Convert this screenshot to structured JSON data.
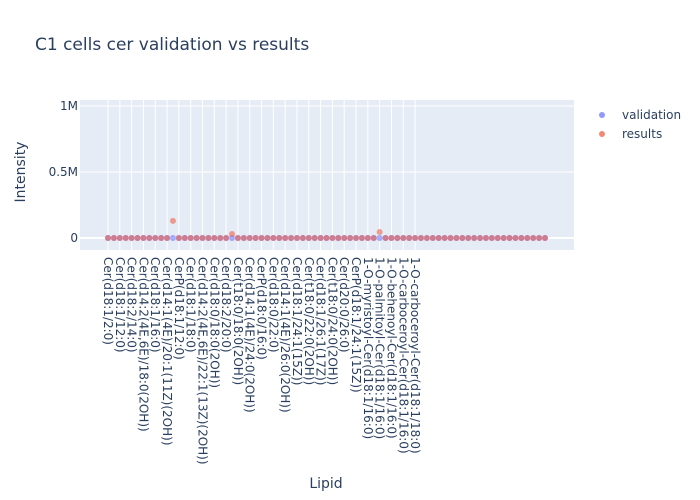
{
  "chart_data": {
    "type": "scatter",
    "title": "C1 cells cer validation vs results",
    "xlabel": "Lipid",
    "ylabel": "Intensity",
    "ylim": [
      -80000,
      1000000
    ],
    "yticks": [
      0,
      500000,
      1000000
    ],
    "ytick_labels": [
      "0",
      "0.5M",
      "1M"
    ],
    "legend_position": "top-right",
    "grid": true,
    "colors": {
      "validation": "#636efa",
      "results": "#ef553b",
      "overlap": "#a45a8c",
      "plot_bg": "#e5ecf6",
      "text": "#2a3f5f"
    },
    "categories": [
      "Cer(d18:1/2:0)",
      "Cer(d18:1/12:0)",
      "Cer(d18:2/14:0)",
      "Cer(d14:2(4E,6E)/18:0(2OH))",
      "Cer(d18:1/16:0)",
      "Cer(d14:1(4E)/20:1(11Z)(2OH))",
      "CerP(d18:1/12:0)",
      "Cer(d18:1/18:0)",
      "Cer(d14:2(4E,6E)/22:1(13Z)(2OH))",
      "Cer(d18:0/18:0(2OH))",
      "Cer(d18:2/20:0)",
      "Cer(t18:0/18:0(2OH))",
      "Cer(d14:1(4E)/24:0(2OH))",
      "CerP(d18:0/16:0)",
      "Cer(d18:0/22:0)",
      "Cer(d14:1(4E)/26:0(2OH))",
      "Cer(d18:1/24:1(15Z))",
      "Cer(t18:0/22:0(2OH))",
      "Cer(d18:1/26:1(17Z))",
      "Cer(t18:0/24:0(2OH))",
      "Cer(d20:0/26:0)",
      "CerP(d18:1/24:1(15Z))",
      "1-O-myristoyl-Cer(d18:1/16:0)",
      "1-O-palmitoyl-Cer(d18:1/16:0)",
      "1-O-behenoyl-Cer(d18:1/16:0)",
      "1-O-carboceroyl-Cer(d18:1/16:0)",
      "1-O-carboceroyl-Cer(d18:1/18:0)"
    ],
    "series": [
      {
        "name": "validation",
        "values": [
          0,
          0,
          0,
          0,
          0,
          0,
          0,
          0,
          0,
          0,
          0,
          0,
          0,
          0,
          0,
          0,
          0,
          0,
          0,
          0,
          0,
          0,
          0,
          0,
          0,
          0,
          0,
          0,
          0,
          0,
          0,
          0,
          0,
          0,
          0,
          0,
          0,
          0,
          0,
          0,
          0,
          0,
          0,
          0,
          0,
          0,
          0,
          0,
          0,
          0,
          0,
          0,
          0,
          0,
          0,
          0,
          0,
          0,
          0,
          0,
          0,
          0,
          0,
          0,
          0,
          0,
          0,
          0,
          0,
          0,
          0,
          0,
          0,
          0,
          0
        ]
      },
      {
        "name": "results",
        "values": [
          0,
          0,
          0,
          0,
          0,
          0,
          0,
          0,
          0,
          0,
          0,
          130000,
          0,
          0,
          0,
          0,
          0,
          0,
          0,
          0,
          0,
          30000,
          0,
          0,
          0,
          0,
          0,
          0,
          0,
          0,
          0,
          0,
          0,
          0,
          0,
          0,
          0,
          0,
          0,
          0,
          0,
          0,
          0,
          0,
          0,
          0,
          45000,
          0,
          0,
          0,
          0,
          0,
          0,
          0,
          0,
          0,
          0,
          0,
          0,
          0,
          0,
          0,
          0,
          0,
          0,
          0,
          0,
          0,
          0,
          0,
          0,
          0,
          0,
          0,
          0
        ]
      }
    ]
  }
}
